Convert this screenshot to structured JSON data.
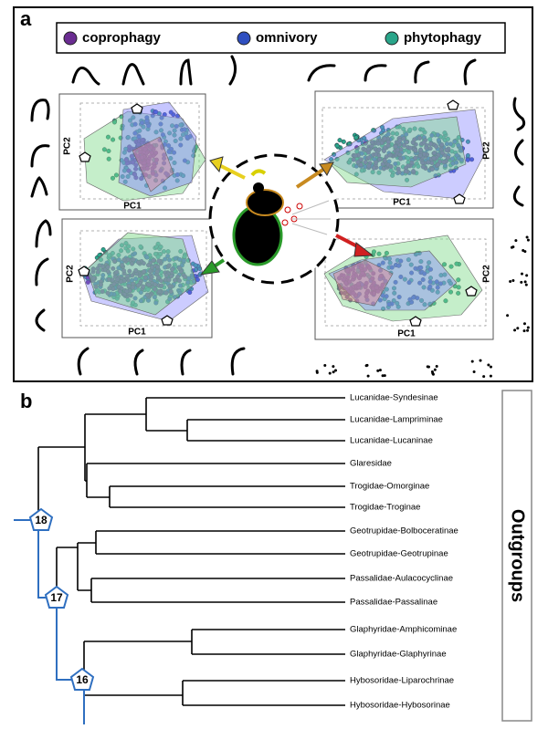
{
  "panel_a": {
    "label": "a",
    "legend": [
      "coprophagy",
      "omnivory",
      "phytophagy"
    ],
    "plots": [
      {
        "x_label": "PC1",
        "y_label": "PC2"
      },
      {
        "x_label": "PC1",
        "y_label": "PC2"
      },
      {
        "x_label": "PC1",
        "y_label": "PC2"
      },
      {
        "x_label": "PC1",
        "y_label": "PC2"
      }
    ]
  },
  "panel_b": {
    "label": "b",
    "taxa": [
      "Lucanidae-Syndesinae",
      "Lucanidae-Lampriminae",
      "Lucanidae-Lucaninae",
      "Glaresidae",
      "Trogidae-Omorginae",
      "Trogidae-Troginae",
      "Geotrupidae-Bolboceratinae",
      "Geotrupidae-Geotrupinae",
      "Passalidae-Aulacocyclinae",
      "Passalidae-Passalinae",
      "Glaphyridae-Amphicominae",
      "Glaphyridae-Glaphyrinae",
      "Hybosoridae-Liparochrinae",
      "Hybosoridae-Hybosorinae"
    ],
    "nodes": [
      "18",
      "17",
      "16"
    ],
    "group_label": "Outgroups"
  }
}
